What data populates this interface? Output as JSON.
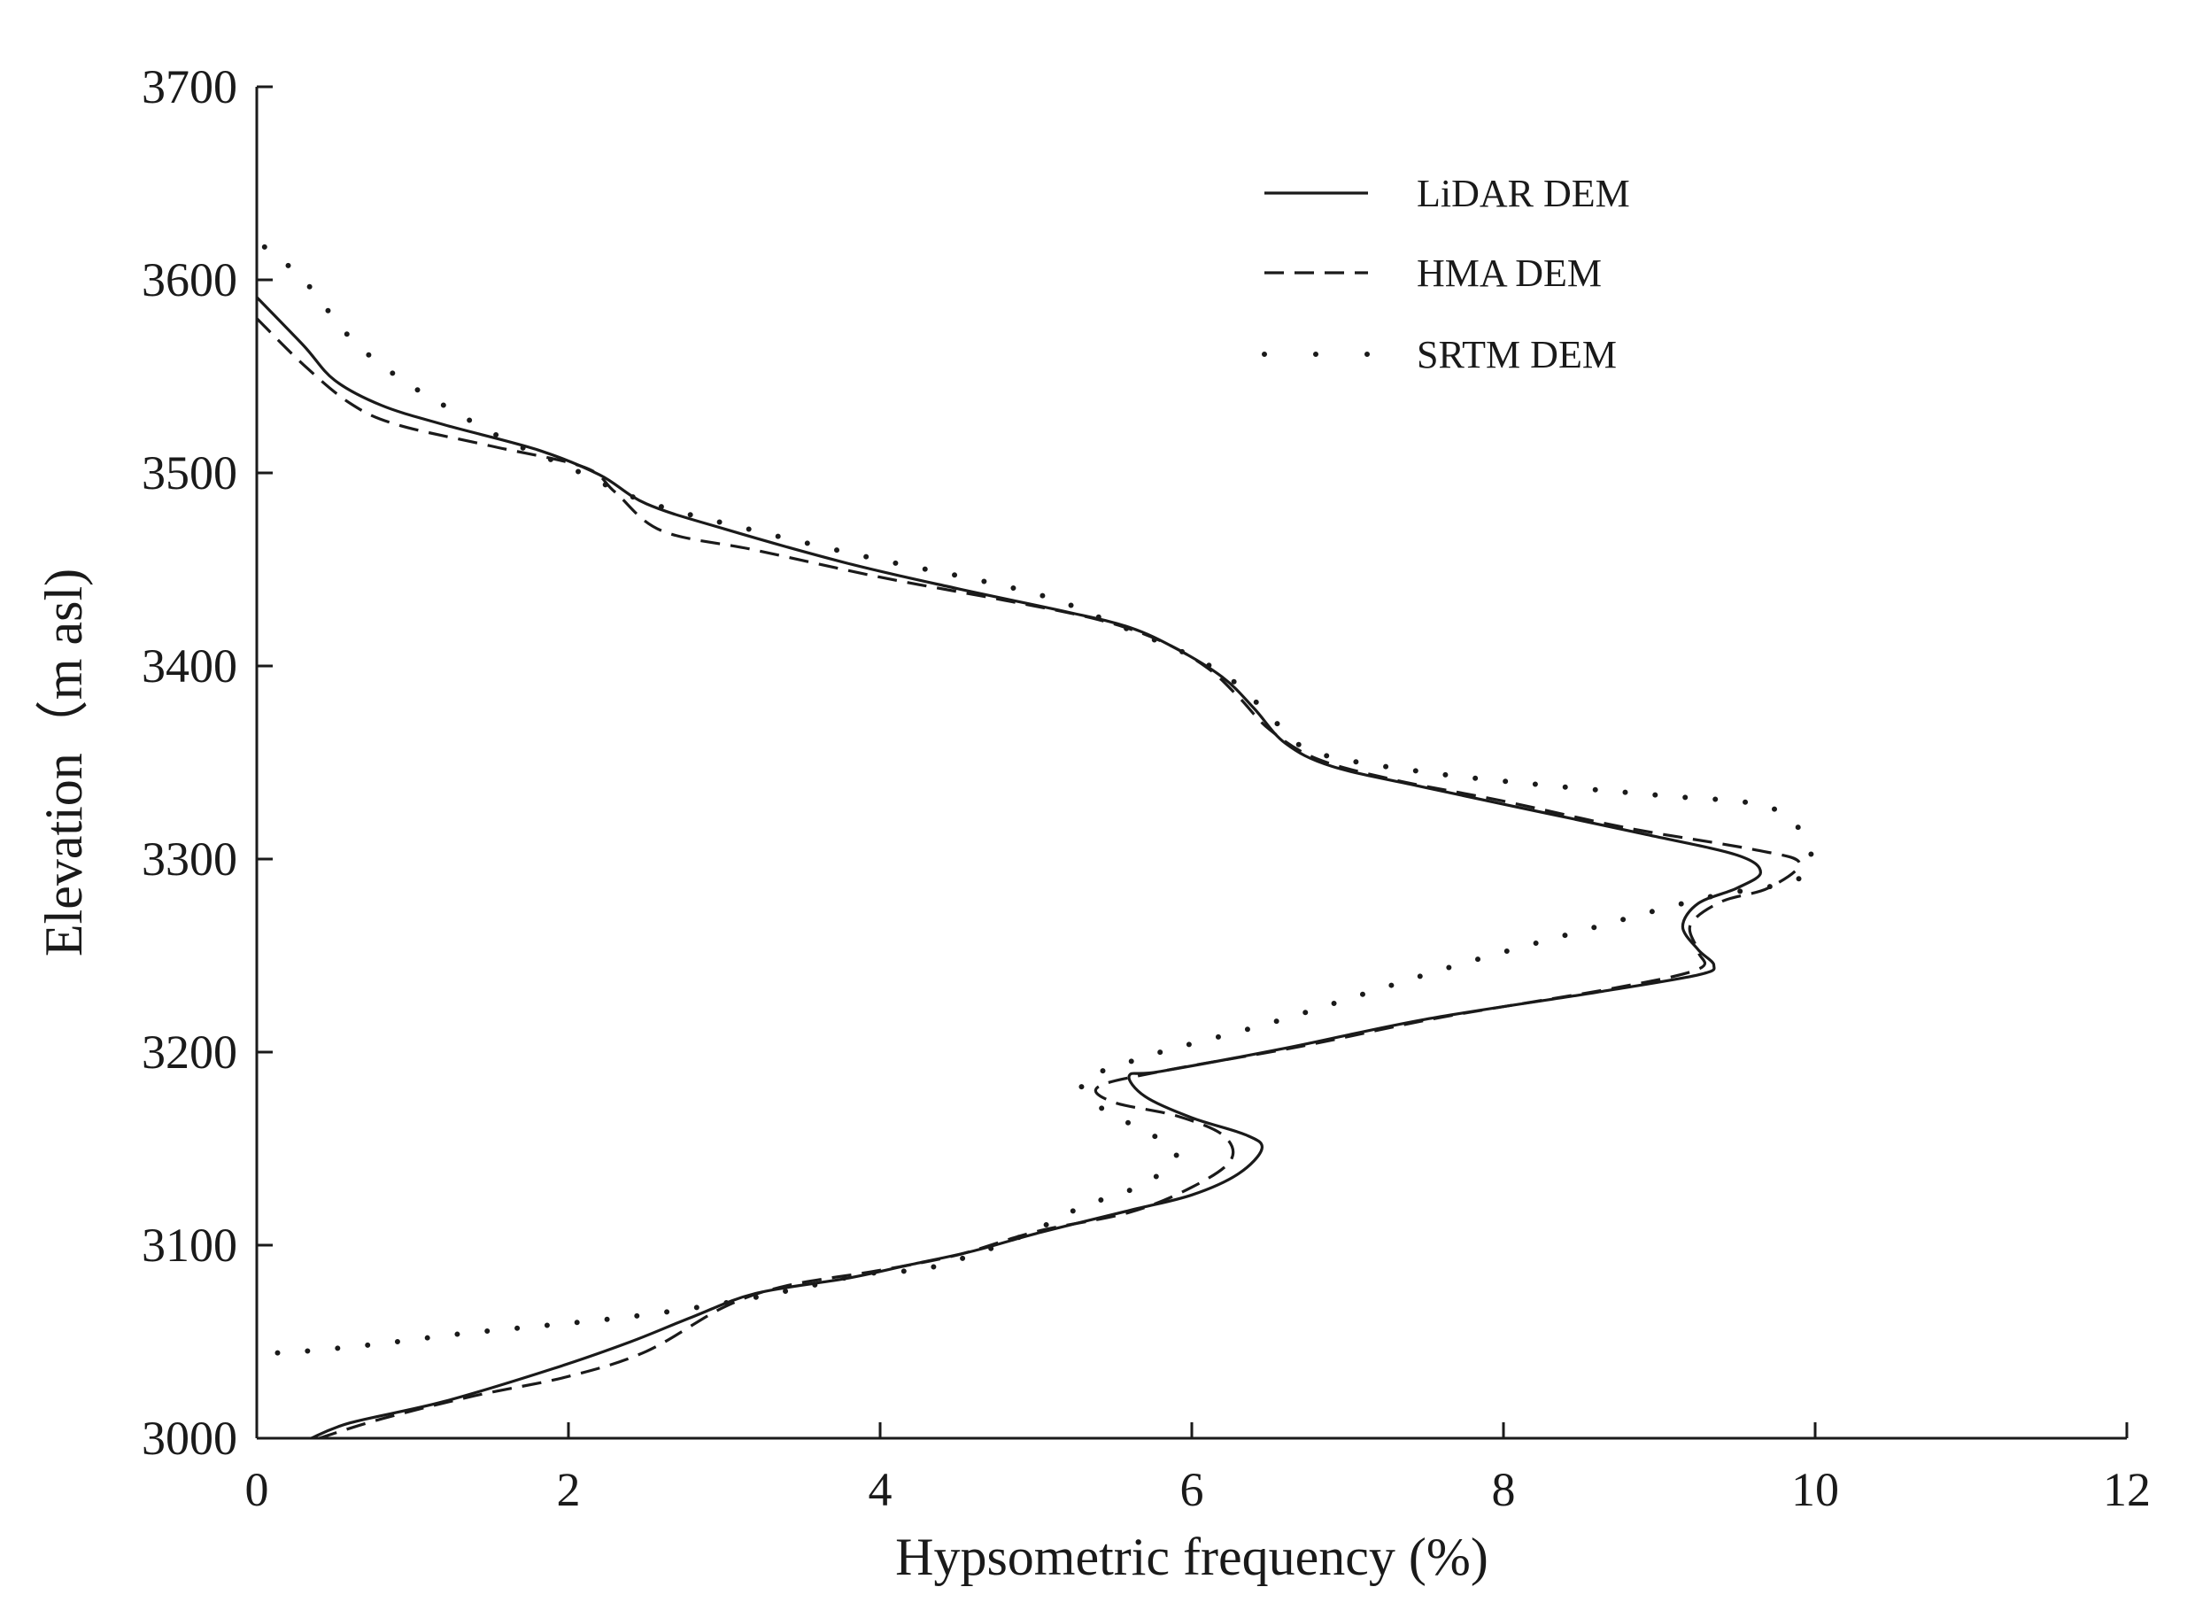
{
  "chart_data": {
    "type": "line",
    "title": "",
    "xlabel": "Hypsometric frequency (%)",
    "ylabel": "Elevation（m asl)",
    "xlim": [
      0,
      12
    ],
    "ylim": [
      3000,
      3700
    ],
    "xticks": [
      "0",
      "2",
      "4",
      "6",
      "8",
      "10",
      "12"
    ],
    "yticks": [
      "3000",
      "3100",
      "3200",
      "3300",
      "3400",
      "3500",
      "3600",
      "3700"
    ],
    "grid": false,
    "legend_position": "top-right",
    "series": [
      {
        "name": "LiDAR DEM",
        "style": "solid",
        "color": "#1a1a1a",
        "points": [
          [
            0.0,
            3591
          ],
          [
            0.3,
            3566
          ],
          [
            0.5,
            3548
          ],
          [
            0.8,
            3535
          ],
          [
            1.2,
            3525
          ],
          [
            1.8,
            3512
          ],
          [
            2.2,
            3499
          ],
          [
            2.5,
            3484
          ],
          [
            3.0,
            3471
          ],
          [
            3.8,
            3453
          ],
          [
            4.5,
            3440
          ],
          [
            5.2,
            3428
          ],
          [
            5.6,
            3420
          ],
          [
            5.9,
            3409
          ],
          [
            6.2,
            3394
          ],
          [
            6.4,
            3378
          ],
          [
            6.6,
            3360
          ],
          [
            6.9,
            3348
          ],
          [
            7.5,
            3337
          ],
          [
            8.2,
            3325
          ],
          [
            8.9,
            3313
          ],
          [
            9.5,
            3302
          ],
          [
            9.65,
            3293
          ],
          [
            9.5,
            3285
          ],
          [
            9.25,
            3277
          ],
          [
            9.15,
            3265
          ],
          [
            9.25,
            3253
          ],
          [
            9.35,
            3245
          ],
          [
            9.25,
            3240
          ],
          [
            8.6,
            3231
          ],
          [
            7.5,
            3217
          ],
          [
            6.6,
            3202
          ],
          [
            5.8,
            3190
          ],
          [
            5.6,
            3188
          ],
          [
            5.7,
            3177
          ],
          [
            6.0,
            3166
          ],
          [
            6.35,
            3157
          ],
          [
            6.45,
            3150
          ],
          [
            6.3,
            3137
          ],
          [
            6.0,
            3126
          ],
          [
            5.6,
            3118
          ],
          [
            5.0,
            3106
          ],
          [
            4.6,
            3097
          ],
          [
            4.2,
            3090
          ],
          [
            3.8,
            3083
          ],
          [
            3.2,
            3075
          ],
          [
            2.8,
            3063
          ],
          [
            2.4,
            3050
          ],
          [
            1.9,
            3036
          ],
          [
            1.2,
            3019
          ],
          [
            0.6,
            3008
          ],
          [
            0.35,
            3000
          ]
        ]
      },
      {
        "name": "HMA DEM",
        "style": "dashed",
        "color": "#1a1a1a",
        "points": [
          [
            0.0,
            3580
          ],
          [
            0.3,
            3556
          ],
          [
            0.6,
            3536
          ],
          [
            0.9,
            3525
          ],
          [
            1.5,
            3514
          ],
          [
            2.1,
            3503
          ],
          [
            2.3,
            3490
          ],
          [
            2.6,
            3470
          ],
          [
            3.2,
            3460
          ],
          [
            4.0,
            3446
          ],
          [
            4.8,
            3434
          ],
          [
            5.4,
            3424
          ],
          [
            5.8,
            3413
          ],
          [
            6.1,
            3399
          ],
          [
            6.3,
            3384
          ],
          [
            6.5,
            3367
          ],
          [
            6.8,
            3352
          ],
          [
            7.3,
            3341
          ],
          [
            8.0,
            3330
          ],
          [
            8.8,
            3316
          ],
          [
            9.6,
            3305
          ],
          [
            9.9,
            3298
          ],
          [
            9.7,
            3285
          ],
          [
            9.4,
            3278
          ],
          [
            9.2,
            3266
          ],
          [
            9.25,
            3252
          ],
          [
            9.25,
            3243
          ],
          [
            8.7,
            3233
          ],
          [
            7.6,
            3218
          ],
          [
            6.7,
            3203
          ],
          [
            5.8,
            3190
          ],
          [
            5.4,
            3182
          ],
          [
            5.5,
            3174
          ],
          [
            5.9,
            3167
          ],
          [
            6.2,
            3157
          ],
          [
            6.25,
            3144
          ],
          [
            6.0,
            3130
          ],
          [
            5.6,
            3117
          ],
          [
            5.0,
            3107
          ],
          [
            4.5,
            3095
          ],
          [
            4.0,
            3087
          ],
          [
            3.4,
            3079
          ],
          [
            3.0,
            3068
          ],
          [
            2.5,
            3045
          ],
          [
            2.0,
            3032
          ],
          [
            1.4,
            3022
          ],
          [
            0.8,
            3010
          ],
          [
            0.4,
            3000
          ]
        ]
      },
      {
        "name": "SRTM DEM",
        "style": "dotted",
        "color": "#1a1a1a",
        "points": [
          [
            0.05,
            3617
          ],
          [
            0.3,
            3600
          ],
          [
            0.6,
            3570
          ],
          [
            0.9,
            3550
          ],
          [
            1.2,
            3535
          ],
          [
            1.6,
            3517
          ],
          [
            2.0,
            3503
          ],
          [
            2.5,
            3485
          ],
          [
            3.2,
            3470
          ],
          [
            4.0,
            3455
          ],
          [
            4.6,
            3445
          ],
          [
            5.1,
            3435
          ],
          [
            5.5,
            3422
          ],
          [
            6.0,
            3405
          ],
          [
            6.3,
            3390
          ],
          [
            6.55,
            3370
          ],
          [
            6.8,
            3355
          ],
          [
            7.5,
            3345
          ],
          [
            8.3,
            3338
          ],
          [
            9.0,
            3333
          ],
          [
            9.7,
            3327
          ],
          [
            9.95,
            3308
          ],
          [
            9.9,
            3290
          ],
          [
            9.3,
            3280
          ],
          [
            8.6,
            3265
          ],
          [
            7.7,
            3245
          ],
          [
            7.1,
            3230
          ],
          [
            6.5,
            3215
          ],
          [
            5.8,
            3200
          ],
          [
            5.5,
            3192
          ],
          [
            5.3,
            3186
          ],
          [
            5.35,
            3175
          ],
          [
            5.6,
            3163
          ],
          [
            5.9,
            3148
          ],
          [
            5.7,
            3132
          ],
          [
            5.3,
            3120
          ],
          [
            5.0,
            3108
          ],
          [
            4.7,
            3098
          ],
          [
            4.3,
            3088
          ],
          [
            3.9,
            3085
          ],
          [
            3.5,
            3078
          ],
          [
            3.0,
            3070
          ],
          [
            2.4,
            3063
          ],
          [
            1.8,
            3058
          ],
          [
            1.3,
            3054
          ],
          [
            0.8,
            3049
          ],
          [
            0.3,
            3045
          ],
          [
            0.05,
            3044
          ]
        ]
      }
    ]
  }
}
